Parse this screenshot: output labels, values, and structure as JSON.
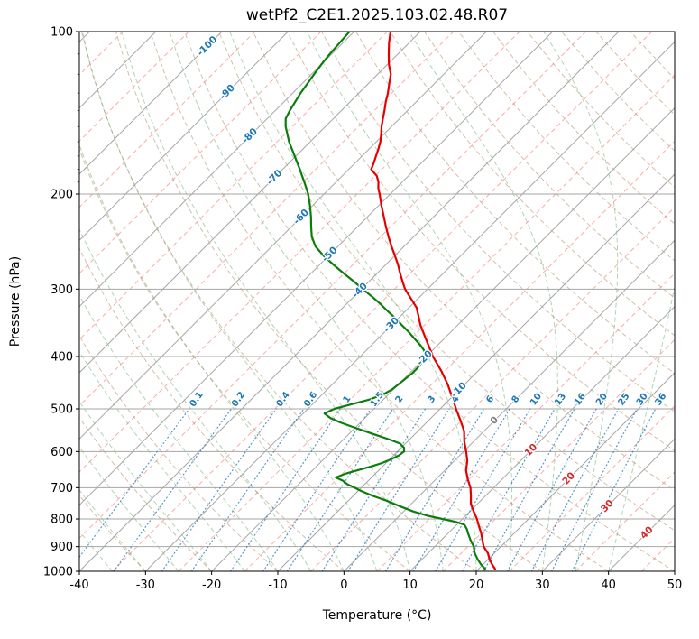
{
  "chart_data": {
    "type": "line",
    "subtype": "skewT-logP-sounding",
    "title": "wetPf2_C2E1.2025.103.02.48.R07",
    "xlabel": "Temperature (°C)",
    "ylabel": "Pressure (hPa)",
    "xlim_C": [
      -40,
      50
    ],
    "plim_hPa": [
      100,
      1000
    ],
    "skew_deg": 45,
    "grid": true,
    "x_ticks_C": [
      -40,
      -30,
      -20,
      -10,
      0,
      10,
      20,
      30,
      40,
      50
    ],
    "p_ticks_hPa": [
      100,
      200,
      300,
      400,
      500,
      600,
      700,
      800,
      900,
      1000
    ],
    "isotherms_C": {
      "start": -120,
      "end": 50,
      "step": 10
    },
    "intermediate_isotherms_C": {
      "start": -125,
      "end": 45,
      "step": 10
    },
    "dry_adiabats_C": {
      "start": -40,
      "end": 180,
      "step": 10
    },
    "moist_adiabats_C": {
      "start": -40,
      "end": 40,
      "step": 5
    },
    "isotherm_labels": [
      -100,
      -90,
      -80,
      -70,
      -60,
      -50,
      -40,
      -30,
      -20,
      -10,
      0,
      10,
      20,
      30,
      40
    ],
    "mixing_ratio_labels_g_per_kg": [
      0.1,
      0.2,
      0.4,
      0.6,
      1,
      1.5,
      2,
      3,
      4,
      6,
      8,
      10,
      13,
      16,
      20,
      25,
      30,
      36
    ],
    "series": [
      {
        "name": "temperature",
        "color": "#e50000",
        "pressure_hPa": [
          990,
          970,
          950,
          925,
          900,
          875,
          850,
          825,
          800,
          775,
          750,
          725,
          700,
          675,
          650,
          625,
          600,
          575,
          550,
          525,
          500,
          475,
          450,
          425,
          400,
          375,
          350,
          325,
          300,
          290,
          280,
          270,
          260,
          250,
          240,
          230,
          220,
          210,
          200,
          195,
          190,
          185,
          180,
          175,
          170,
          165,
          160,
          155,
          150,
          145,
          140,
          135,
          130,
          125,
          120,
          115,
          110,
          105,
          100
        ],
        "values_C": [
          22.5,
          21.3,
          20.2,
          19.0,
          17.4,
          16.2,
          15.0,
          13.6,
          12.2,
          10.6,
          9.0,
          7.8,
          6.5,
          4.8,
          3.2,
          2.0,
          0.4,
          -1.4,
          -3.0,
          -5.2,
          -7.6,
          -10.0,
          -12.6,
          -15.6,
          -19.0,
          -22.2,
          -25.6,
          -28.8,
          -33.4,
          -35.0,
          -36.6,
          -38.2,
          -40.0,
          -41.9,
          -43.8,
          -45.7,
          -47.6,
          -49.6,
          -51.6,
          -52.7,
          -53.6,
          -54.8,
          -56.6,
          -57.2,
          -57.9,
          -58.6,
          -59.4,
          -60.4,
          -61.5,
          -62.5,
          -63.5,
          -64.6,
          -65.6,
          -66.8,
          -68.0,
          -69.8,
          -71.4,
          -73.0,
          -74.5
        ]
      },
      {
        "name": "dewpoint",
        "color": "#0b7d0b",
        "pressure_hPa": [
          990,
          970,
          950,
          925,
          900,
          875,
          850,
          835,
          820,
          810,
          800,
          790,
          775,
          760,
          750,
          740,
          725,
          710,
          700,
          690,
          680,
          670,
          660,
          650,
          640,
          630,
          620,
          610,
          600,
          590,
          580,
          570,
          560,
          550,
          540,
          530,
          520,
          510,
          500,
          490,
          480,
          470,
          460,
          450,
          440,
          430,
          420,
          410,
          400,
          390,
          380,
          370,
          360,
          350,
          340,
          330,
          320,
          310,
          300,
          290,
          280,
          270,
          260,
          250,
          240,
          230,
          220,
          210,
          200,
          190,
          180,
          170,
          160,
          150,
          145,
          140,
          135,
          130,
          125,
          120,
          115,
          110,
          105,
          100
        ],
        "values_C": [
          21.0,
          19.6,
          18.4,
          17.0,
          15.9,
          14.4,
          13.0,
          12.2,
          11.2,
          9.5,
          7.0,
          4.5,
          1.5,
          -1.0,
          -2.6,
          -4.2,
          -7.0,
          -9.5,
          -11.0,
          -12.6,
          -13.8,
          -15.4,
          -14.6,
          -13.2,
          -11.8,
          -10.6,
          -9.8,
          -9.2,
          -9.0,
          -9.6,
          -10.8,
          -13.0,
          -15.5,
          -18.0,
          -20.5,
          -23.0,
          -25.2,
          -26.8,
          -26.0,
          -24.0,
          -22.0,
          -20.8,
          -20.2,
          -20.0,
          -19.8,
          -19.6,
          -19.6,
          -19.8,
          -20.2,
          -21.2,
          -22.8,
          -24.6,
          -26.4,
          -28.4,
          -30.4,
          -32.6,
          -34.8,
          -37.2,
          -39.8,
          -42.4,
          -45.2,
          -48.0,
          -50.8,
          -53.4,
          -55.4,
          -57.0,
          -58.6,
          -60.4,
          -62.4,
          -64.8,
          -67.4,
          -70.2,
          -73.2,
          -76.0,
          -77.2,
          -77.8,
          -78.3,
          -78.8,
          -79.2,
          -79.6,
          -80.0,
          -80.3,
          -80.5,
          -80.7
        ]
      }
    ]
  },
  "colors": {
    "temperature_line": "#e50000",
    "dewpoint_line": "#0b7d0b",
    "isotherm_grid": "#a6a6a6",
    "pressure_grid": "#a6a6a6",
    "intermediate_isotherm": "rgba(242,106,94,0.55)",
    "dry_adiabat": "rgba(176,138,96,0.55)",
    "moist_adiabat": "rgba(76,164,86,0.45)",
    "mixing_ratio_line": "rgba(31,119,180,0.75)",
    "cold_label": "#1f77b4",
    "zero_label": "#808080",
    "warm_label": "#d62728",
    "frame": "#000000"
  }
}
